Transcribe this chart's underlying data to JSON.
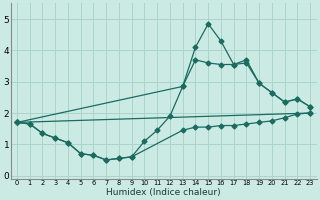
{
  "xlabel": "Humidex (Indice chaleur)",
  "bg_color": "#cceae4",
  "grid_color": "#aad4cc",
  "line_color": "#1a6b60",
  "xlim": [
    -0.5,
    23.5
  ],
  "ylim": [
    -0.1,
    5.5
  ],
  "xticks": [
    0,
    1,
    2,
    3,
    4,
    5,
    6,
    7,
    8,
    9,
    10,
    11,
    12,
    13,
    14,
    15,
    16,
    17,
    18,
    19,
    20,
    21,
    22,
    23
  ],
  "yticks": [
    0,
    1,
    2,
    3,
    4,
    5
  ],
  "line1_x": [
    0,
    1,
    2,
    3,
    4,
    5,
    6,
    7,
    8,
    9,
    13,
    14,
    15,
    16,
    17,
    18,
    19,
    20,
    21,
    22,
    23
  ],
  "line1_y": [
    1.7,
    1.65,
    1.35,
    1.2,
    1.05,
    0.7,
    0.65,
    0.5,
    0.55,
    0.6,
    1.45,
    1.55,
    1.55,
    1.6,
    1.6,
    1.65,
    1.7,
    1.75,
    1.85,
    1.97,
    2.0
  ],
  "line2_x": [
    0,
    1,
    2,
    3,
    4,
    5,
    6,
    7,
    8,
    9,
    10,
    11,
    12,
    13,
    14,
    15,
    16,
    17,
    18,
    19,
    20,
    21,
    22,
    23
  ],
  "line2_y": [
    1.7,
    1.65,
    1.35,
    1.2,
    1.05,
    0.7,
    0.65,
    0.5,
    0.55,
    0.6,
    1.1,
    1.45,
    1.9,
    2.85,
    4.1,
    4.85,
    4.3,
    3.55,
    3.7,
    2.95,
    2.65,
    2.35,
    2.45,
    2.2
  ],
  "line3_x": [
    0,
    23
  ],
  "line3_y": [
    1.7,
    2.0
  ],
  "line4_x": [
    0,
    13,
    14,
    15,
    16,
    17,
    18,
    19,
    20,
    21,
    22,
    23
  ],
  "line4_y": [
    1.7,
    2.85,
    3.7,
    3.6,
    3.55,
    3.55,
    3.6,
    2.95,
    2.65,
    2.35,
    2.45,
    2.2
  ]
}
